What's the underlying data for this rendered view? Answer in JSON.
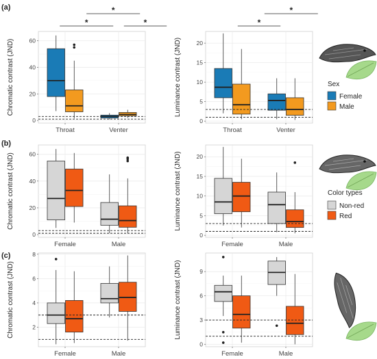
{
  "figure": {
    "panel_labels": [
      "(a)",
      "(b)",
      "(c)"
    ],
    "legends": [
      {
        "title": "Sex",
        "entries": [
          {
            "label": "Female",
            "color": "#1a7bb6"
          },
          {
            "label": "Male",
            "color": "#f39a1f"
          }
        ]
      },
      {
        "title": "Color types",
        "entries": [
          {
            "label": "Non-red",
            "color": "#d6d6d6"
          },
          {
            "label": "Red",
            "color": "#f05a14"
          }
        ]
      }
    ],
    "icons": [
      "lizard-head-icon",
      "leaf-icon"
    ]
  },
  "chart_data": [
    {
      "id": "a-left",
      "type": "box",
      "ylabel": "Chromatic contrast (JND)",
      "categories": [
        "Throat",
        "Venter"
      ],
      "ylim": [
        -2,
        67
      ],
      "yticks": [
        0,
        20,
        40,
        60
      ],
      "thresholds": [
        1,
        3
      ],
      "significance": [
        {
          "from": 0.4,
          "to": 1.4,
          "label": "*"
        },
        {
          "from": 0.9,
          "to": 1.9,
          "label": "*"
        },
        {
          "from": 1.6,
          "to": 2.4,
          "label": "*"
        }
      ],
      "series": [
        {
          "name": "Female",
          "color": "#1a7bb6",
          "boxes": [
            {
              "min": 7,
              "q1": 18,
              "median": 30,
              "q3": 54,
              "max": 64,
              "outliers": []
            },
            {
              "min": 0.8,
              "q1": 1.8,
              "median": 3,
              "q3": 4,
              "max": 5.5,
              "outliers": []
            }
          ]
        },
        {
          "name": "Male",
          "color": "#f39a1f",
          "boxes": [
            {
              "min": 1.5,
              "q1": 6.5,
              "median": 11,
              "q3": 23,
              "max": 45,
              "outliers": [
                55,
                57
              ]
            },
            {
              "min": 2,
              "q1": 3.5,
              "median": 4.5,
              "q3": 6,
              "max": 8,
              "outliers": []
            }
          ]
        }
      ]
    },
    {
      "id": "a-right",
      "type": "box",
      "ylabel": "Luminance contrast (JND)",
      "categories": [
        "Throat",
        "Venter"
      ],
      "ylim": [
        -0.5,
        23
      ],
      "yticks": [
        0,
        5,
        10,
        15,
        20
      ],
      "thresholds": [
        1,
        3
      ],
      "significance": [
        {
          "from": 0.6,
          "to": 1.4,
          "label": "*"
        },
        {
          "from": 1.1,
          "to": 2.1,
          "label": "*"
        }
      ],
      "series": [
        {
          "name": "Female",
          "color": "#1a7bb6",
          "boxes": [
            {
              "min": 2,
              "q1": 6,
              "median": 8.7,
              "q3": 13.5,
              "max": 22.5,
              "outliers": []
            },
            {
              "min": 0.5,
              "q1": 2.8,
              "median": 5.3,
              "q3": 7,
              "max": 11,
              "outliers": []
            }
          ]
        },
        {
          "name": "Male",
          "color": "#f39a1f",
          "boxes": [
            {
              "min": 0.5,
              "q1": 1.8,
              "median": 4.2,
              "q3": 9.5,
              "max": 18.5,
              "outliers": []
            },
            {
              "min": 0.3,
              "q1": 1.5,
              "median": 3,
              "q3": 6,
              "max": 11,
              "outliers": []
            }
          ]
        }
      ]
    },
    {
      "id": "b-left",
      "type": "box",
      "ylabel": "Chromatic contrast (JND)",
      "categories": [
        "Female",
        "Male"
      ],
      "ylim": [
        -2,
        67
      ],
      "yticks": [
        0,
        20,
        40,
        60
      ],
      "thresholds": [
        1,
        3
      ],
      "significance": [],
      "series": [
        {
          "name": "Non-red",
          "color": "#d6d6d6",
          "boxes": [
            {
              "min": 5,
              "q1": 11,
              "median": 27,
              "q3": 55,
              "max": 64,
              "outliers": []
            },
            {
              "min": 1,
              "q1": 7,
              "median": 11.5,
              "q3": 24,
              "max": 45,
              "outliers": []
            }
          ]
        },
        {
          "name": "Red",
          "color": "#f05a14",
          "boxes": [
            {
              "min": 9,
              "q1": 21,
              "median": 33,
              "q3": 49,
              "max": 61,
              "outliers": []
            },
            {
              "min": 1,
              "q1": 5.5,
              "median": 10.5,
              "q3": 21.5,
              "max": 42,
              "outliers": [
                55,
                56.5,
                57.5
              ]
            }
          ]
        }
      ]
    },
    {
      "id": "b-right",
      "type": "box",
      "ylabel": "Luminance contrast (JND)",
      "categories": [
        "Female",
        "Male"
      ],
      "ylim": [
        -0.5,
        23
      ],
      "yticks": [
        0,
        5,
        10,
        15,
        20
      ],
      "thresholds": [
        1,
        3
      ],
      "significance": [],
      "series": [
        {
          "name": "Non-red",
          "color": "#d6d6d6",
          "boxes": [
            {
              "min": 2.5,
              "q1": 5.5,
              "median": 8.5,
              "q3": 14.5,
              "max": 22.5,
              "outliers": []
            },
            {
              "min": 0.8,
              "q1": 3,
              "median": 7.8,
              "q3": 11,
              "max": 16,
              "outliers": []
            }
          ]
        },
        {
          "name": "Red",
          "color": "#f05a14",
          "boxes": [
            {
              "min": 2,
              "q1": 6,
              "median": 10,
              "q3": 13.5,
              "max": 19.5,
              "outliers": []
            },
            {
              "min": 0.5,
              "q1": 2,
              "median": 3.5,
              "q3": 6.5,
              "max": 11,
              "outliers": [
                18.5
              ]
            }
          ]
        }
      ]
    },
    {
      "id": "c-left",
      "type": "box",
      "ylabel": "Chromatic contrast (JND)",
      "categories": [
        "Female",
        "Male"
      ],
      "ylim": [
        0.4,
        8.1
      ],
      "yticks": [
        2,
        4,
        6,
        8
      ],
      "thresholds": [
        1,
        3
      ],
      "significance": [],
      "series": [
        {
          "name": "Non-red",
          "color": "#d6d6d6",
          "boxes": [
            {
              "min": 0.6,
              "q1": 2.3,
              "median": 3,
              "q3": 4,
              "max": 6.7,
              "outliers": [
                7.6
              ]
            },
            {
              "min": 2.8,
              "q1": 4,
              "median": 4.35,
              "q3": 5.6,
              "max": 7
            }
          ]
        },
        {
          "name": "Red",
          "color": "#f05a14",
          "boxes": [
            {
              "min": 0.7,
              "q1": 1.6,
              "median": 2.7,
              "q3": 4.2,
              "max": 6.6,
              "outliers": []
            },
            {
              "min": 0.9,
              "q1": 3.3,
              "median": 4.45,
              "q3": 5.7,
              "max": 7.9,
              "outliers": []
            }
          ]
        }
      ]
    },
    {
      "id": "c-right",
      "type": "box",
      "ylabel": "Luminance contrast (JND)",
      "categories": [
        "Female",
        "Male"
      ],
      "ylim": [
        -0.3,
        11.3
      ],
      "yticks": [
        0,
        3,
        6,
        9
      ],
      "thresholds": [
        1,
        3
      ],
      "significance": [],
      "series": [
        {
          "name": "Non-red",
          "color": "#d6d6d6",
          "boxes": [
            {
              "min": 3.5,
              "q1": 5.3,
              "median": 6.5,
              "q3": 7.3,
              "max": 8.5,
              "outliers": [
                10.8,
                1.5,
                0.2
              ]
            },
            {
              "min": 6,
              "q1": 7.4,
              "median": 8.9,
              "q3": 10.3,
              "max": 10.8,
              "outliers": [
                2.3
              ]
            }
          ]
        },
        {
          "name": "Red",
          "color": "#f05a14",
          "boxes": [
            {
              "min": 0.2,
              "q1": 2,
              "median": 3.7,
              "q3": 6,
              "max": 8.5,
              "outliers": []
            },
            {
              "min": 0,
              "q1": 1.2,
              "median": 2.6,
              "q3": 4.7,
              "max": 8.7,
              "outliers": []
            }
          ]
        }
      ]
    }
  ]
}
